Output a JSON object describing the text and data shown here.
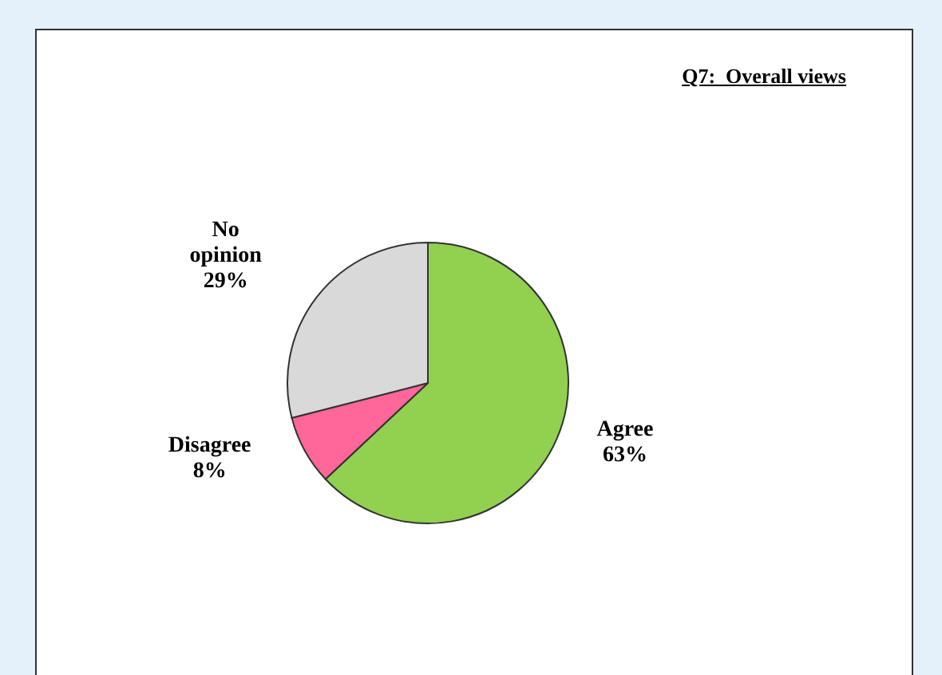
{
  "chart_data": {
    "type": "pie",
    "title": "Q7:  Overall views",
    "categories": [
      "Agree",
      "Disagree",
      "No opinion"
    ],
    "values": [
      63,
      8,
      29
    ],
    "colors": [
      "#92d050",
      "#ff6699",
      "#d9d9d9"
    ],
    "value_labels": [
      "63%",
      "8%",
      "29%"
    ]
  }
}
